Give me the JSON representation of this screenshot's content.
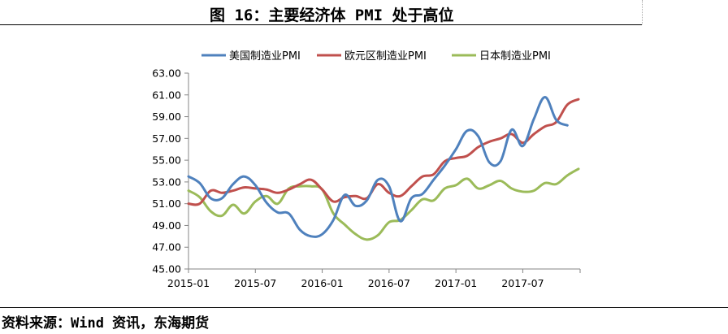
{
  "title": "图 16：主要经济体 PMI 处于高位",
  "source": "资料来源：Wind 资讯，东海期货",
  "chart_data": {
    "type": "line",
    "x": [
      "2015-01",
      "2015-02",
      "2015-03",
      "2015-04",
      "2015-05",
      "2015-06",
      "2015-07",
      "2015-08",
      "2015-09",
      "2015-10",
      "2015-11",
      "2015-12",
      "2016-01",
      "2016-02",
      "2016-03",
      "2016-04",
      "2016-05",
      "2016-06",
      "2016-07",
      "2016-08",
      "2016-09",
      "2016-10",
      "2016-11",
      "2016-12",
      "2017-01",
      "2017-02",
      "2017-03",
      "2017-04",
      "2017-05",
      "2017-06",
      "2017-07",
      "2017-08",
      "2017-09",
      "2017-10",
      "2017-11",
      "2017-12"
    ],
    "x_tick_labels": [
      "2015-01",
      "2015-07",
      "2016-01",
      "2016-07",
      "2017-01",
      "2017-07"
    ],
    "y_ticks": [
      "63.00",
      "61.00",
      "59.00",
      "57.00",
      "55.00",
      "53.00",
      "51.00",
      "49.00",
      "47.00",
      "45.00"
    ],
    "ylim": [
      45,
      63
    ],
    "grid": false,
    "legend_position": "top",
    "series": [
      {
        "name": "美国制造业PMI",
        "color": "#4f81bd",
        "values": [
          53.5,
          52.9,
          51.5,
          51.5,
          52.8,
          53.5,
          52.7,
          51.1,
          50.2,
          50.1,
          48.6,
          48.0,
          48.2,
          49.5,
          51.8,
          50.8,
          51.3,
          53.2,
          52.6,
          49.4,
          51.5,
          51.9,
          53.2,
          54.5,
          56.0,
          57.7,
          57.2,
          54.8,
          54.9,
          57.8,
          56.3,
          58.8,
          60.8,
          58.7,
          58.2,
          null
        ]
      },
      {
        "name": "欧元区制造业PMI",
        "color": "#c0504d",
        "values": [
          51.0,
          51.0,
          52.2,
          52.0,
          52.2,
          52.5,
          52.4,
          52.3,
          52.0,
          52.3,
          52.8,
          53.2,
          52.3,
          51.2,
          51.6,
          51.7,
          51.5,
          52.8,
          52.0,
          51.7,
          52.6,
          53.5,
          53.7,
          54.9,
          55.2,
          55.4,
          56.2,
          56.7,
          57.0,
          57.4,
          56.6,
          57.4,
          58.1,
          58.5,
          60.1,
          60.6
        ]
      },
      {
        "name": "日本制造业PMI",
        "color": "#9bbb59",
        "values": [
          52.2,
          51.6,
          50.3,
          49.9,
          50.9,
          50.1,
          51.2,
          51.7,
          51.0,
          52.4,
          52.6,
          52.6,
          52.3,
          50.1,
          49.1,
          48.2,
          47.7,
          48.1,
          49.3,
          49.5,
          50.4,
          51.4,
          51.3,
          52.4,
          52.7,
          53.3,
          52.4,
          52.7,
          53.1,
          52.4,
          52.1,
          52.2,
          52.9,
          52.8,
          53.6,
          54.2
        ]
      }
    ]
  }
}
